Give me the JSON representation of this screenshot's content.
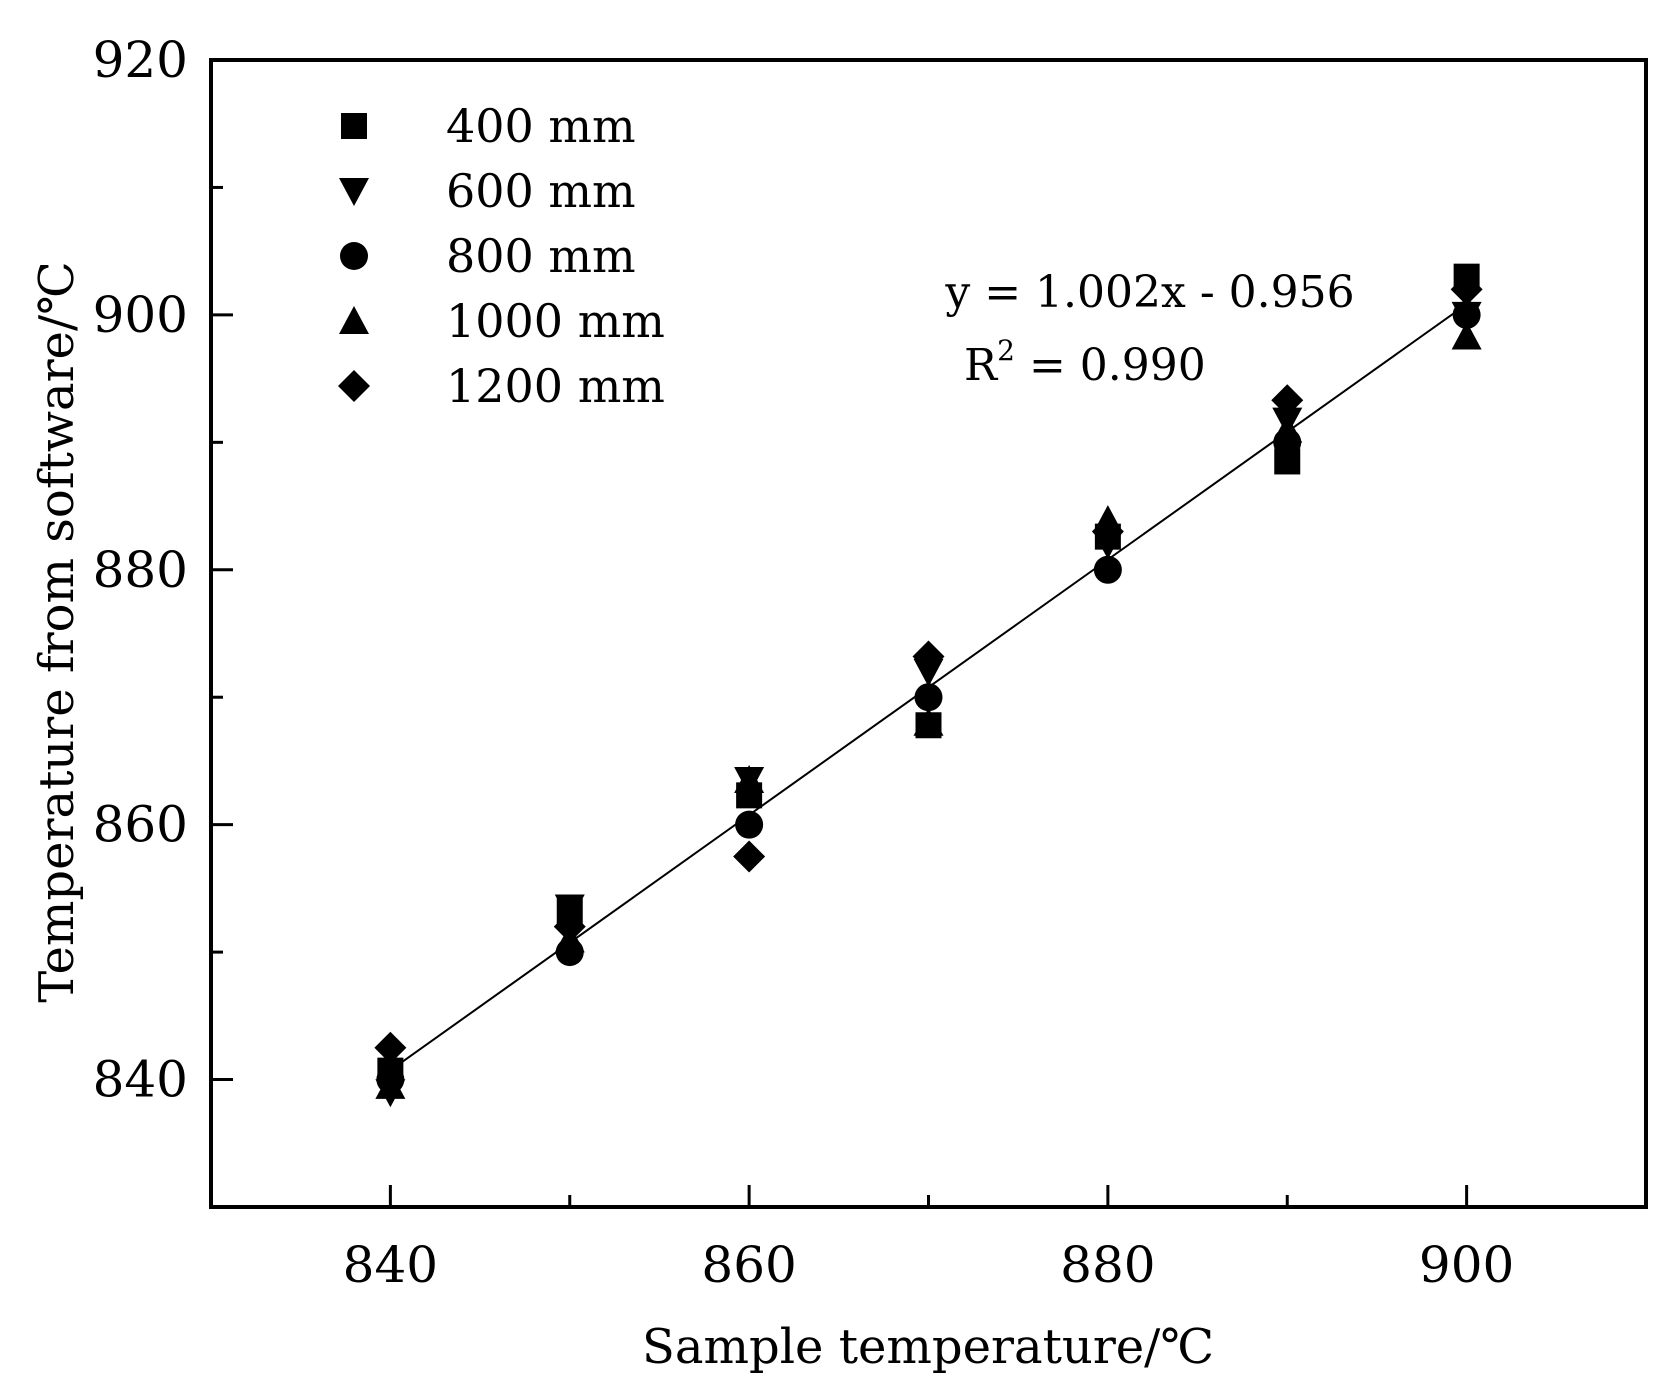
{
  "chart_data": {
    "type": "scatter",
    "title": "",
    "xlabel": "Sample temperature/℃",
    "ylabel": "Temperature from software/℃",
    "xlim": [
      830,
      910
    ],
    "ylim": [
      830,
      920
    ],
    "xticks": [
      840,
      860,
      880,
      900
    ],
    "yticks": [
      840,
      860,
      880,
      900,
      920
    ],
    "x_tick_labels": [
      "840",
      "860",
      "880",
      "900"
    ],
    "y_tick_labels": [
      "840",
      "860",
      "880",
      "900",
      "920"
    ],
    "x_minor_ticks": [
      850,
      870,
      890
    ],
    "y_minor_ticks": [
      850,
      870,
      890,
      910
    ],
    "grid": false,
    "legend_position": "top-left",
    "x": [
      840,
      850,
      860,
      870,
      880,
      890,
      900
    ],
    "series": [
      {
        "name": "400 mm",
        "marker": "square",
        "values": [
          840.7,
          853.2,
          862.3,
          867.8,
          882.6,
          888.5,
          903.0
        ]
      },
      {
        "name": "600 mm",
        "marker": "triangle-down",
        "values": [
          839.0,
          853.5,
          863.5,
          872.0,
          882.0,
          891.7,
          900.0
        ]
      },
      {
        "name": "800 mm",
        "marker": "circle",
        "values": [
          840.0,
          850.0,
          860.0,
          870.0,
          880.0,
          890.0,
          900.0
        ]
      },
      {
        "name": "1000 mm",
        "marker": "triangle-up",
        "values": [
          839.5,
          851.0,
          863.5,
          868.0,
          883.9,
          891.0,
          898.3
        ]
      },
      {
        "name": "1200 mm",
        "marker": "diamond",
        "values": [
          842.5,
          852.0,
          857.5,
          873.2,
          883.0,
          893.3,
          902.0
        ]
      }
    ],
    "fit": {
      "slope": 1.002,
      "intercept": -0.956,
      "x_range": [
        840,
        900
      ],
      "equation": "y = 1.002x - 0.956",
      "r2_label": "R",
      "r2_superscript": "2",
      "r2_value": " = 0.990"
    }
  }
}
